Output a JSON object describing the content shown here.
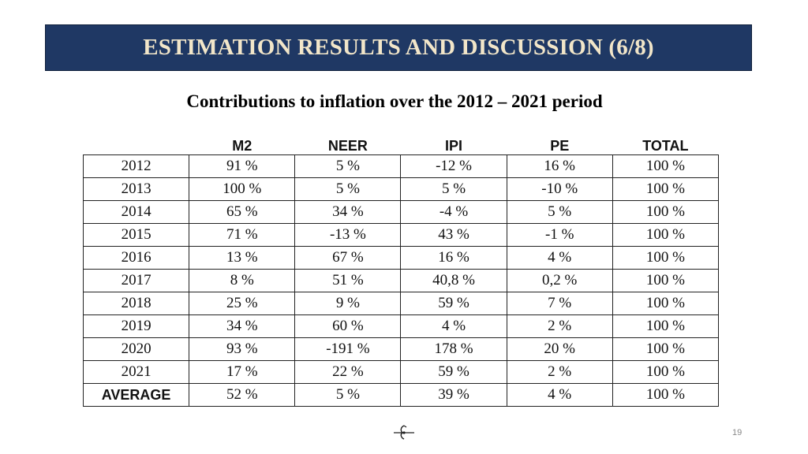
{
  "slide": {
    "title": "ESTIMATION RESULTS AND DISCUSSION (6/8)",
    "subtitle": "Contributions to inflation over the 2012 – 2021 period",
    "page_number": "19"
  },
  "table": {
    "columns": [
      "",
      "M2",
      "NEER",
      "IPI",
      "PE",
      "TOTAL"
    ],
    "rows": [
      [
        "2012",
        "91 %",
        "5 %",
        "-12 %",
        "16 %",
        "100 %"
      ],
      [
        "2013",
        "100 %",
        "5 %",
        "5 %",
        "-10 %",
        "100 %"
      ],
      [
        "2014",
        "65 %",
        "34 %",
        "-4 %",
        "5 %",
        "100 %"
      ],
      [
        "2015",
        "71 %",
        "-13 %",
        "43 %",
        "-1 %",
        "100 %"
      ],
      [
        "2016",
        "13 %",
        "67 %",
        "16 %",
        "4 %",
        "100 %"
      ],
      [
        "2017",
        "8 %",
        "51 %",
        "40,8 %",
        "0,2 %",
        "100 %"
      ],
      [
        "2018",
        "25 %",
        "9 %",
        "59 %",
        "7 %",
        "100 %"
      ],
      [
        "2019",
        "34 %",
        "60 %",
        "4 %",
        "2 %",
        "100 %"
      ],
      [
        "2020",
        "93 %",
        "-191 %",
        "178 %",
        "20 %",
        "100 %"
      ],
      [
        "2021",
        "17 %",
        "22 %",
        "59 %",
        "2 %",
        "100 %"
      ],
      [
        "AVERAGE",
        "52 %",
        "5 %",
        "39 %",
        "4 %",
        "100 %"
      ]
    ]
  },
  "logo": {
    "icon": "institution-logo-icon"
  },
  "colors": {
    "title_bar_bg": "#1f3864",
    "title_text": "#f2e6c9",
    "table_border": "#222222"
  }
}
